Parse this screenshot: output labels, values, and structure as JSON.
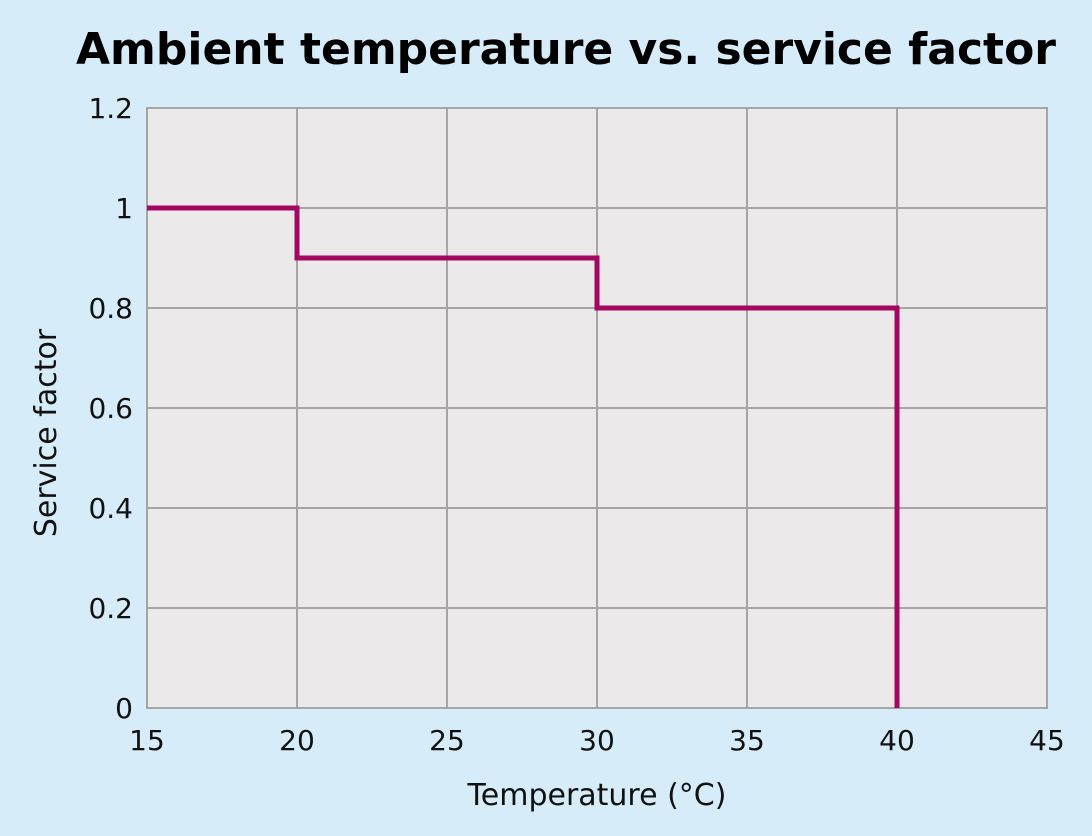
{
  "chart_data": {
    "type": "line",
    "step": true,
    "title": "Ambient temperature vs. service factor",
    "xlabel": "Temperature (°C)",
    "ylabel": "Service factor",
    "xlim": [
      15,
      45
    ],
    "ylim": [
      0,
      1.2
    ],
    "x_ticks": [
      "15",
      "20",
      "25",
      "30",
      "35",
      "40",
      "45"
    ],
    "y_ticks": [
      "0",
      "0.2",
      "0.4",
      "0.6",
      "0.8",
      "1",
      "1.2"
    ],
    "grid": true,
    "legend": "none",
    "series": [
      {
        "x": [
          15,
          20,
          20,
          30,
          30,
          40,
          40
        ],
        "y": [
          1,
          1,
          0.9,
          0.9,
          0.8,
          0.8,
          0
        ]
      }
    ]
  },
  "colors": {
    "background": "#d6ecf8",
    "plot_area": "#ebe9ea",
    "grid": "#a5a5a5",
    "line": "#a3075f",
    "text": "#111111"
  }
}
